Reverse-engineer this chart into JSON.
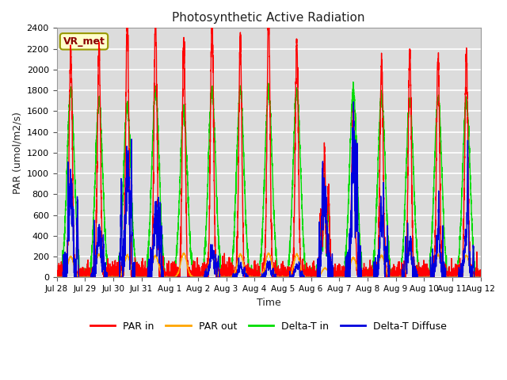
{
  "title": "Photosynthetic Active Radiation",
  "ylabel": "PAR (umol/m2/s)",
  "xlabel": "Time",
  "annotation": "VR_met",
  "ylim": [
    0,
    2400
  ],
  "yticks": [
    0,
    200,
    400,
    600,
    800,
    1000,
    1200,
    1400,
    1600,
    1800,
    2000,
    2200,
    2400
  ],
  "xtick_labels": [
    "Jul 28",
    "Jul 29",
    "Jul 30",
    "Jul 31",
    "Aug 1",
    "Aug 2",
    "Aug 3",
    "Aug 4",
    "Aug 5",
    "Aug 6",
    "Aug 7",
    "Aug 8",
    "Aug 9",
    "Aug 10",
    "Aug 11",
    "Aug 12"
  ],
  "background_color": "#dcdcdc",
  "grid_color": "#ffffff",
  "series": {
    "par_in": {
      "color": "#ff0000",
      "label": "PAR in",
      "linewidth": 1.0
    },
    "par_out": {
      "color": "#ffa500",
      "label": "PAR out",
      "linewidth": 1.0
    },
    "delta_t_in": {
      "color": "#00dd00",
      "label": "Delta-T in",
      "linewidth": 1.0
    },
    "delta_t_diffuse": {
      "color": "#0000dd",
      "label": "Delta-T Diffuse",
      "linewidth": 1.0
    }
  },
  "days": [
    {
      "par_in": 2230,
      "par_out": 200,
      "delta_t_in": 1800,
      "delta_t_diffuse": 850,
      "cloudy": false
    },
    {
      "par_in": 2200,
      "par_out": 220,
      "delta_t_in": 1700,
      "delta_t_diffuse": 440,
      "cloudy": false
    },
    {
      "par_in": 2500,
      "par_out": 210,
      "delta_t_in": 1650,
      "delta_t_diffuse": 950,
      "cloudy": false
    },
    {
      "par_in": 2500,
      "par_out": 210,
      "delta_t_in": 1800,
      "delta_t_diffuse": 600,
      "cloudy": false
    },
    {
      "par_in": 2280,
      "par_out": 230,
      "delta_t_in": 1600,
      "delta_t_diffuse": 0,
      "cloudy": false
    },
    {
      "par_in": 2500,
      "par_out": 230,
      "delta_t_in": 1800,
      "delta_t_diffuse": 240,
      "cloudy": false
    },
    {
      "par_in": 2250,
      "par_out": 220,
      "delta_t_in": 1800,
      "delta_t_diffuse": 100,
      "cloudy": false
    },
    {
      "par_in": 2500,
      "par_out": 230,
      "delta_t_in": 1800,
      "delta_t_diffuse": 90,
      "cloudy": false
    },
    {
      "par_in": 2250,
      "par_out": 220,
      "delta_t_in": 1800,
      "delta_t_diffuse": 110,
      "cloudy": false
    },
    {
      "par_in": 1220,
      "par_out": 90,
      "delta_t_in": 930,
      "delta_t_diffuse": 730,
      "cloudy": true
    },
    {
      "par_in": 1650,
      "par_out": 190,
      "delta_t_in": 1800,
      "delta_t_diffuse": 1000,
      "cloudy": false
    },
    {
      "par_in": 2100,
      "par_out": 210,
      "delta_t_in": 1750,
      "delta_t_diffuse": 490,
      "cloudy": false
    },
    {
      "par_in": 2160,
      "par_out": 230,
      "delta_t_in": 1700,
      "delta_t_diffuse": 290,
      "cloudy": false
    },
    {
      "par_in": 2130,
      "par_out": 215,
      "delta_t_in": 1730,
      "delta_t_diffuse": 390,
      "cloudy": false
    },
    {
      "par_in": 2130,
      "par_out": 210,
      "delta_t_in": 1700,
      "delta_t_diffuse": 400,
      "cloudy": false
    }
  ],
  "n_points": 288,
  "day_start": 0.25,
  "day_end": 0.75
}
